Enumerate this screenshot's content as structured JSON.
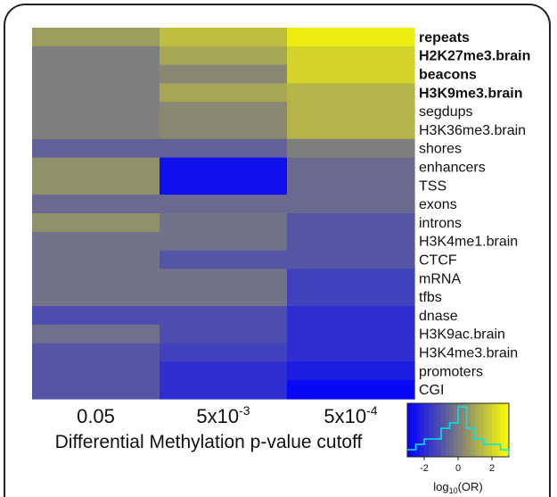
{
  "chart_data": {
    "type": "heatmap",
    "columns": [
      "0.05",
      "5x10",
      "5x10"
    ],
    "column_exponents": [
      "",
      "-3",
      "-4"
    ],
    "xlabel": "Differential Methylation p-value cutoff",
    "rows": [
      {
        "label": "repeats",
        "bold": true
      },
      {
        "label": "H2K27me3.brain",
        "bold": true
      },
      {
        "label": "beacons",
        "bold": true
      },
      {
        "label": "H3K9me3.brain",
        "bold": true
      },
      {
        "label": "segdups",
        "bold": false
      },
      {
        "label": "H3K36me3.brain",
        "bold": false
      },
      {
        "label": "shores",
        "bold": false
      },
      {
        "label": "enhancers",
        "bold": false
      },
      {
        "label": "TSS",
        "bold": false
      },
      {
        "label": "exons",
        "bold": false
      },
      {
        "label": "introns",
        "bold": false
      },
      {
        "label": "H3K4me1.brain",
        "bold": false
      },
      {
        "label": "CTCF",
        "bold": false
      },
      {
        "label": "mRNA",
        "bold": false
      },
      {
        "label": "tfbs",
        "bold": false
      },
      {
        "label": "dnase",
        "bold": false
      },
      {
        "label": "H3K9ac.brain",
        "bold": false
      },
      {
        "label": "H3K4me3.brain",
        "bold": false
      },
      {
        "label": "promoters",
        "bold": false
      },
      {
        "label": "CGI",
        "bold": false
      }
    ],
    "values": [
      [
        0.8,
        1.5,
        2.6
      ],
      [
        0.1,
        1.0,
        2.0
      ],
      [
        0.1,
        0.3,
        2.0
      ],
      [
        0.1,
        1.0,
        1.3
      ],
      [
        0.1,
        0.3,
        1.3
      ],
      [
        0.1,
        0.3,
        1.3
      ],
      [
        -0.6,
        -0.6,
        0.1
      ],
      [
        0.5,
        -2.6,
        -0.4
      ],
      [
        0.5,
        -2.6,
        -0.4
      ],
      [
        -0.4,
        -0.4,
        -0.4
      ],
      [
        0.5,
        -0.2,
        -0.9
      ],
      [
        -0.2,
        -0.2,
        -0.9
      ],
      [
        -0.2,
        -0.9,
        -0.9
      ],
      [
        -0.2,
        -0.2,
        -1.4
      ],
      [
        -0.2,
        -0.2,
        -1.4
      ],
      [
        -1.1,
        -1.1,
        -1.9
      ],
      [
        -0.3,
        -1.1,
        -1.9
      ],
      [
        -0.9,
        -1.4,
        -1.9
      ],
      [
        -0.9,
        -1.9,
        -2.3
      ],
      [
        -0.9,
        -1.9,
        -2.8
      ]
    ],
    "colorbar": {
      "title_base": "log",
      "title_sub": "10",
      "title_rest": "(OR)",
      "ticks": [
        -2,
        0,
        2
      ],
      "tick_labels": [
        "-2",
        "0",
        "2"
      ],
      "range": [
        -3,
        3
      ],
      "histogram_x": [
        -3,
        -2.5,
        -2,
        -1.5,
        -1,
        -0.5,
        0,
        0.5,
        1,
        1.5,
        2,
        2.5,
        3
      ],
      "histogram_counts": [
        1,
        2,
        3,
        3,
        5,
        6,
        9,
        5,
        3,
        2,
        2,
        1,
        0
      ],
      "colors": [
        "#0000ff",
        "#7a7a80",
        "#ffff00"
      ],
      "histogram_color": "#00e5ee"
    }
  }
}
